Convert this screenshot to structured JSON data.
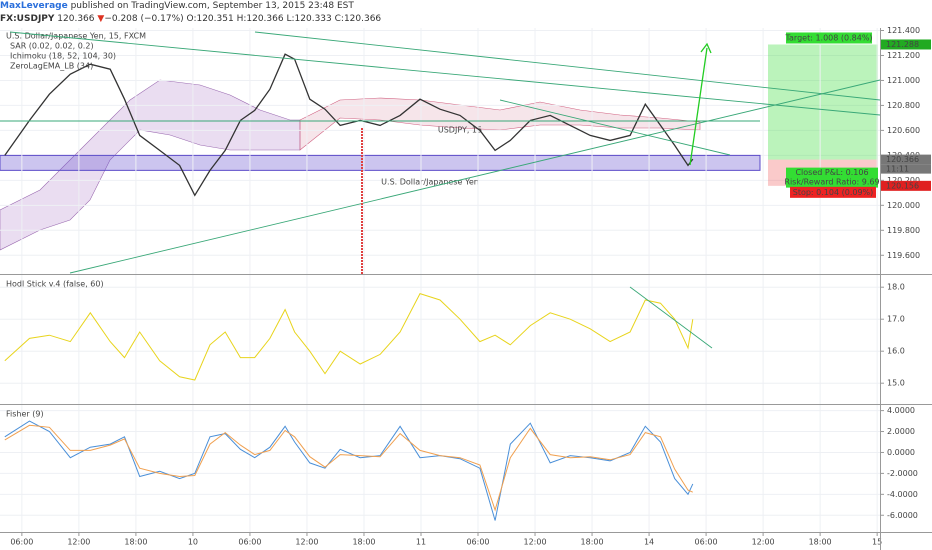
{
  "header": {
    "author": "MaxLeverage",
    "published": "published on TradingView.com, September 13, 2015 23:48 EST",
    "symbol": "FX:USDJPY",
    "last": "120.366",
    "arrow": "▼",
    "change": "−0.208 (−0.17%)",
    "open": "O:120.351",
    "high": "H:120.366",
    "low": "L:120.333",
    "close": "C:120.366"
  },
  "chart_data": [
    {
      "type": "line",
      "title": "U.S. Dollar/Japanese Yen, 15, FXCM",
      "watermark": "USDJPY, 15",
      "watermark_subtitle": "U.S. Dollar/Japanese Yen",
      "indicators": [
        "SAR (0.02, 0.02, 0.2)",
        "Ichimoku (18, 52, 104, 30)",
        "ZeroLagEMA_LB (34)"
      ],
      "xlim": [
        -2.3,
        90.3
      ],
      "x": [
        -1.8,
        0.8,
        2.9,
        5.1,
        7.2,
        9.3,
        10.8,
        12.4,
        14.5,
        16.6,
        18.2,
        19.8,
        21.4,
        23.0,
        24.5,
        26.1,
        27.7,
        28.7,
        30.3,
        31.9,
        33.5,
        35.6,
        37.7,
        39.8,
        41.9,
        44.0,
        46.1,
        48.2,
        49.8,
        51.4,
        53.5,
        55.6,
        57.7,
        59.8,
        61.9,
        64.0,
        65.6,
        67.2,
        68.7,
        70.1,
        70.6
      ],
      "series": [
        {
          "color": "#333333",
          "values": [
            120.4,
            120.68,
            120.89,
            121.05,
            121.13,
            121.09,
            120.85,
            120.56,
            120.44,
            120.32,
            120.08,
            120.28,
            120.44,
            120.68,
            120.76,
            120.93,
            121.21,
            121.17,
            120.85,
            120.77,
            120.64,
            120.68,
            120.64,
            120.72,
            120.85,
            120.77,
            120.72,
            120.6,
            120.44,
            120.52,
            120.68,
            120.72,
            120.64,
            120.56,
            120.52,
            120.56,
            120.81,
            120.64,
            120.48,
            120.32,
            120.37
          ]
        }
      ],
      "ylim": [
        119.45,
        121.42
      ],
      "yticks": [
        {
          "value": 119.6,
          "label": "119.600"
        },
        {
          "value": 119.8,
          "label": "119.800"
        },
        {
          "value": 120,
          "label": "120.000"
        },
        {
          "value": 120.2,
          "label": "120.200"
        },
        {
          "value": 120.4,
          "label": "120.400"
        },
        {
          "value": 120.6,
          "label": "120.600"
        },
        {
          "value": 120.8,
          "label": "120.800"
        },
        {
          "value": 121,
          "label": "121.000"
        },
        {
          "value": 121.2,
          "label": "121.200"
        },
        {
          "value": 121.4,
          "label": "121.400"
        }
      ],
      "price_labels": [
        {
          "value": 121.288,
          "color": "#22aa22"
        },
        {
          "value": 120.366,
          "color": "#777777"
        },
        {
          "value": 120.156,
          "color": "#e02020"
        }
      ],
      "countdown": "11:11",
      "annotations": {
        "target": "Target: 1.008 (0.84%)",
        "closed": "Closed P&L: 0.106",
        "ratio": "Risk/Reward Ratio: 9.69",
        "stop": "Stop: 0.104 (0.09%)"
      }
    },
    {
      "type": "line",
      "title": "Hodl Stick v.4 (false, 60)",
      "x": [
        -1.8,
        0.8,
        2.9,
        5.1,
        7.2,
        9.3,
        10.8,
        12.4,
        14.5,
        16.6,
        18.2,
        19.8,
        21.4,
        23.0,
        24.5,
        26.1,
        27.7,
        28.7,
        30.3,
        31.9,
        33.5,
        35.6,
        37.7,
        39.8,
        41.9,
        44.0,
        46.1,
        48.2,
        49.8,
        51.4,
        53.5,
        55.6,
        57.7,
        59.8,
        61.9,
        64.0,
        65.6,
        67.2,
        68.7,
        70.1,
        70.6
      ],
      "series": [
        {
          "color": "#e8d41c",
          "values": [
            15.7,
            16.4,
            16.5,
            16.3,
            17.2,
            16.3,
            15.8,
            16.6,
            15.7,
            15.2,
            15.1,
            16.2,
            16.6,
            15.8,
            15.8,
            16.4,
            17.3,
            16.6,
            16.0,
            15.3,
            16.0,
            15.6,
            15.9,
            16.6,
            17.8,
            17.6,
            17.0,
            16.3,
            16.5,
            16.2,
            16.8,
            17.2,
            17.0,
            16.7,
            16.3,
            16.6,
            17.6,
            17.5,
            17.0,
            16.1,
            17.0
          ]
        }
      ],
      "ylim": [
        14.35,
        18.35
      ],
      "yticks": [
        {
          "value": 15,
          "label": "15.0"
        },
        {
          "value": 16,
          "label": "16.0"
        },
        {
          "value": 17,
          "label": "17.0"
        },
        {
          "value": 18,
          "label": "18.0"
        }
      ]
    },
    {
      "type": "line",
      "title": "Fisher (9)",
      "x": [
        -1.8,
        0.8,
        2.9,
        5.1,
        7.2,
        9.3,
        10.8,
        12.4,
        14.5,
        16.6,
        18.2,
        19.8,
        21.4,
        23.0,
        24.5,
        26.1,
        27.7,
        28.7,
        30.3,
        31.9,
        33.5,
        35.6,
        37.7,
        39.8,
        41.9,
        44.0,
        46.1,
        48.2,
        49.8,
        51.4,
        53.5,
        55.6,
        57.7,
        59.8,
        61.9,
        64.0,
        65.6,
        67.2,
        68.7,
        70.1,
        70.6
      ],
      "series": [
        {
          "color": "#4a8fd8",
          "values": [
            1.5,
            3.0,
            2.0,
            -0.5,
            0.5,
            0.8,
            1.5,
            -2.3,
            -1.8,
            -2.5,
            -2.0,
            1.5,
            1.8,
            0.3,
            -0.5,
            0.5,
            2.5,
            1.0,
            -1.0,
            -1.5,
            0.3,
            -0.5,
            -0.3,
            2.5,
            -0.5,
            -0.3,
            -0.6,
            -1.5,
            -6.5,
            0.8,
            2.8,
            -1.0,
            -0.3,
            -0.5,
            -0.8,
            0.0,
            2.5,
            1.0,
            -2.5,
            -4.0,
            -3.0
          ]
        },
        {
          "color": "#f0a050",
          "values": [
            1.2,
            2.6,
            2.4,
            0.2,
            0.2,
            0.7,
            1.3,
            -1.5,
            -2.0,
            -2.3,
            -2.2,
            0.8,
            1.9,
            0.7,
            -0.2,
            0.2,
            2.1,
            1.5,
            -0.4,
            -1.4,
            -0.2,
            -0.3,
            -0.4,
            1.8,
            0.2,
            -0.3,
            -0.5,
            -1.2,
            -5.5,
            -0.5,
            2.3,
            -0.2,
            -0.5,
            -0.4,
            -0.7,
            -0.2,
            1.9,
            1.5,
            -1.6,
            -3.6,
            -3.8
          ]
        }
      ],
      "ylim": [
        -7.6,
        4.44
      ],
      "yticks": [
        {
          "value": 4,
          "label": "4.0000"
        },
        {
          "value": 2,
          "label": "2.0000"
        },
        {
          "value": 0,
          "label": "0.0000"
        },
        {
          "value": -2,
          "label": "-2.0000"
        },
        {
          "value": -4,
          "label": "-4.0000"
        },
        {
          "value": -6,
          "label": "-6.0000"
        }
      ],
      "xticks": [
        {
          "value": 0,
          "label": "06:00"
        },
        {
          "value": 6,
          "label": "12:00"
        },
        {
          "value": 12,
          "label": "18:00"
        },
        {
          "value": 18,
          "label": "10"
        },
        {
          "value": 24,
          "label": "06:00"
        },
        {
          "value": 30,
          "label": "12:00"
        },
        {
          "value": 36,
          "label": "18:00"
        },
        {
          "value": 42,
          "label": "11"
        },
        {
          "value": 48,
          "label": "06:00"
        },
        {
          "value": 54,
          "label": "12:00"
        },
        {
          "value": 60,
          "label": "18:00"
        },
        {
          "value": 66,
          "label": "14"
        },
        {
          "value": 72,
          "label": "06:00"
        },
        {
          "value": 78,
          "label": "12:00"
        },
        {
          "value": 84,
          "label": "18:00"
        },
        {
          "value": 90,
          "label": "15"
        }
      ]
    }
  ]
}
